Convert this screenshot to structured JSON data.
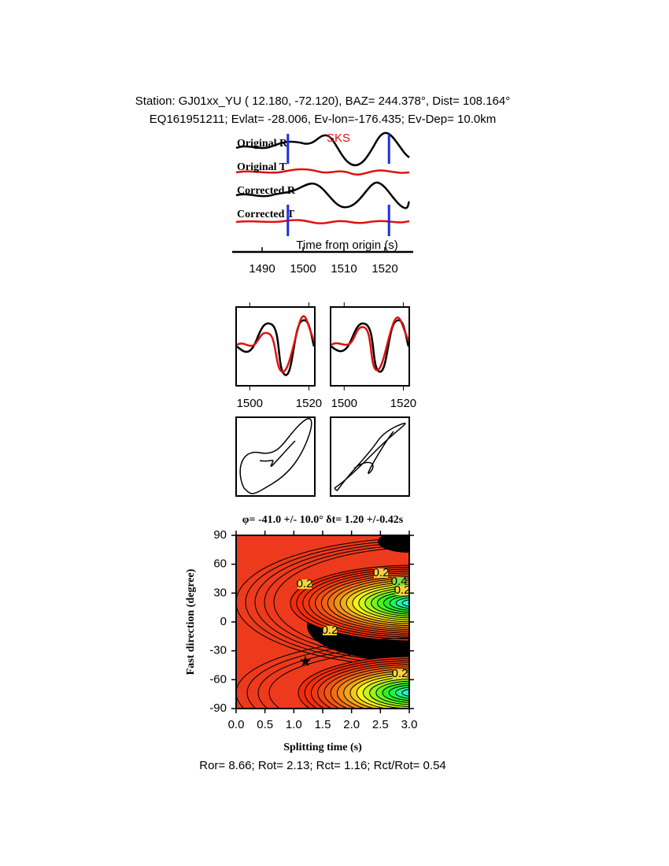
{
  "header": {
    "station": "Station: GJ01xx_YU (  12.180,  -72.120), BAZ=  244.378°, Dist=  108.164°",
    "event": "EQ161951211; Evlat= -28.006, Ev-lon=-176.435; Ev-Dep= 10.0km"
  },
  "traces": {
    "labels": [
      "Original R",
      "Original T",
      "Corrected R",
      "Corrected T"
    ],
    "phase": "SKS",
    "xlabel": "Time from origin (s)",
    "xlim": [
      1483.65,
      1526.92
    ],
    "xticks": [
      1490,
      1500,
      1510,
      1520
    ],
    "window": [
      1496.3,
      1521.0
    ]
  },
  "waveform_panels": {
    "xlim": [
      1495.4,
      1522.0
    ],
    "xticks": [
      1500,
      1520
    ]
  },
  "grid_search": {
    "title": "φ= -41.0 +/- 10.0° δt= 1.20 +/-0.42s",
    "xlabel": "Splitting time (s)",
    "ylabel": "Fast direction (degree)",
    "xlim": [
      0,
      3
    ],
    "ylim": [
      -90,
      90
    ],
    "xticks": [
      {
        "value": 0,
        "label": "0.0"
      },
      0.5,
      {
        "value": 1,
        "label": "1.0"
      },
      1.5,
      {
        "value": 2,
        "label": "2.0"
      },
      2.5,
      {
        "value": 3,
        "label": "3.0"
      }
    ],
    "yticks": [
      -90,
      -60,
      -30,
      0,
      30,
      60,
      90
    ],
    "best": {
      "dt": 1.2,
      "phi": -41
    },
    "contour_labels": [
      "0.2",
      "0.2",
      "0.2",
      "0.2",
      "0.4",
      "0.2"
    ]
  },
  "footer": "Ror= 8.66; Rot= 2.13; Rct= 1.16; Rct/Rot= 0.54"
}
